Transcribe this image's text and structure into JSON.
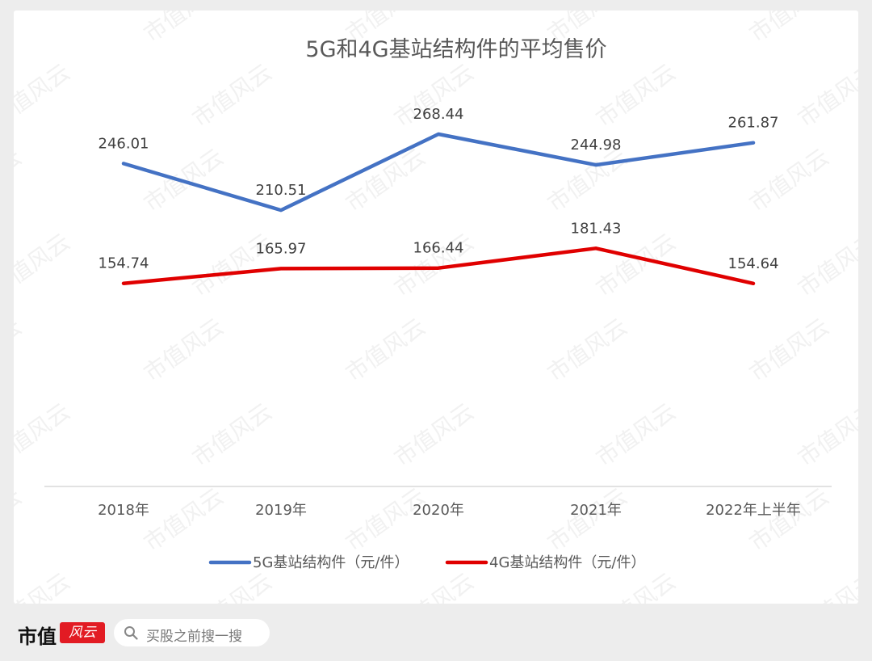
{
  "chart_data": {
    "type": "line",
    "title": "5G和4G基站结构件的平均售价",
    "categories": [
      "2018年",
      "2019年",
      "2020年",
      "2021年",
      "2022年上半年"
    ],
    "series": [
      {
        "name": "5G基站结构件（元/件）",
        "values": [
          246.01,
          210.51,
          268.44,
          244.98,
          261.87
        ],
        "color": "#4472c4"
      },
      {
        "name": "4G基站结构件（元/件）",
        "values": [
          154.74,
          165.97,
          166.44,
          181.43,
          154.64
        ],
        "color": "#e00000"
      }
    ],
    "data_labels": [
      [
        "246.01",
        "210.51",
        "268.44",
        "244.98",
        "261.87"
      ],
      [
        "154.74",
        "165.97",
        "166.44",
        "181.43",
        "154.64"
      ]
    ],
    "ylim": [
      0,
      300
    ],
    "grid": false,
    "legend_position": "bottom",
    "watermark": "市值风云"
  },
  "footer": {
    "brand": "市值",
    "brand_seal": "风云",
    "search_placeholder": "买股之前搜一搜"
  }
}
